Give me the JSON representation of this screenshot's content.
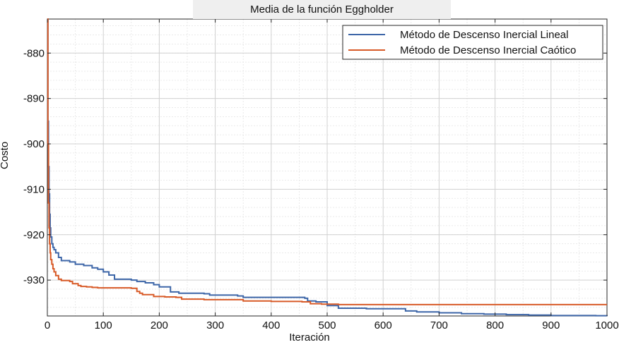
{
  "chart_data": {
    "type": "line",
    "title": "Media de la función Eggholder",
    "xlabel": "Iteración",
    "ylabel": "Costo",
    "xlim": [
      0,
      1000
    ],
    "ylim": [
      -937.9,
      -872.5
    ],
    "xticks": [
      0,
      100,
      200,
      300,
      400,
      500,
      600,
      700,
      800,
      900,
      1000
    ],
    "yticks": [
      -880,
      -890,
      -900,
      -910,
      -920,
      -930
    ],
    "grid": true,
    "minor_grid": true,
    "legend_position": "top-right",
    "series": [
      {
        "name": "Método de Descenso Inercial Lineal",
        "color": "#3d66a8",
        "x": [
          0,
          1,
          2,
          3,
          4,
          5,
          6,
          8,
          10,
          12,
          15,
          20,
          25,
          40,
          50,
          65,
          80,
          90,
          100,
          110,
          120,
          150,
          160,
          175,
          190,
          200,
          220,
          235,
          280,
          290,
          340,
          350,
          460,
          465,
          480,
          500,
          520,
          570,
          640,
          660,
          700,
          740,
          780,
          820,
          860,
          900,
          980,
          1000
        ],
        "y": [
          -872.5,
          -895.0,
          -905.0,
          -911.0,
          -915.5,
          -918.5,
          -920.5,
          -922.0,
          -922.8,
          -923.3,
          -924.0,
          -925.0,
          -925.7,
          -926.0,
          -926.5,
          -926.8,
          -927.3,
          -927.6,
          -928.2,
          -928.9,
          -929.8,
          -930.0,
          -930.3,
          -930.6,
          -931.0,
          -931.5,
          -932.6,
          -932.9,
          -933.0,
          -933.3,
          -933.5,
          -933.8,
          -934.0,
          -934.6,
          -934.8,
          -935.6,
          -936.2,
          -936.3,
          -936.8,
          -937.0,
          -937.2,
          -937.4,
          -937.5,
          -937.6,
          -937.7,
          -937.8,
          -937.85,
          -937.9
        ]
      },
      {
        "name": "Método de Descenso Inercial Caótico",
        "color": "#d85a27",
        "x": [
          0,
          1,
          2,
          3,
          4,
          5,
          6,
          8,
          10,
          12,
          15,
          20,
          25,
          40,
          45,
          55,
          60,
          70,
          80,
          90,
          100,
          150,
          160,
          165,
          170,
          190,
          210,
          230,
          240,
          280,
          350,
          400,
          455,
          470,
          490,
          520,
          1000
        ],
        "y": [
          -872.5,
          -900.0,
          -913.0,
          -918.5,
          -922.0,
          -924.0,
          -925.5,
          -926.5,
          -927.5,
          -928.2,
          -929.0,
          -929.8,
          -930.1,
          -930.3,
          -930.8,
          -931.2,
          -931.4,
          -931.5,
          -931.6,
          -931.7,
          -931.7,
          -931.8,
          -932.5,
          -932.9,
          -933.2,
          -933.6,
          -933.7,
          -933.8,
          -934.2,
          -934.3,
          -934.6,
          -934.7,
          -934.8,
          -935.2,
          -935.3,
          -935.4,
          -935.4
        ]
      }
    ]
  }
}
